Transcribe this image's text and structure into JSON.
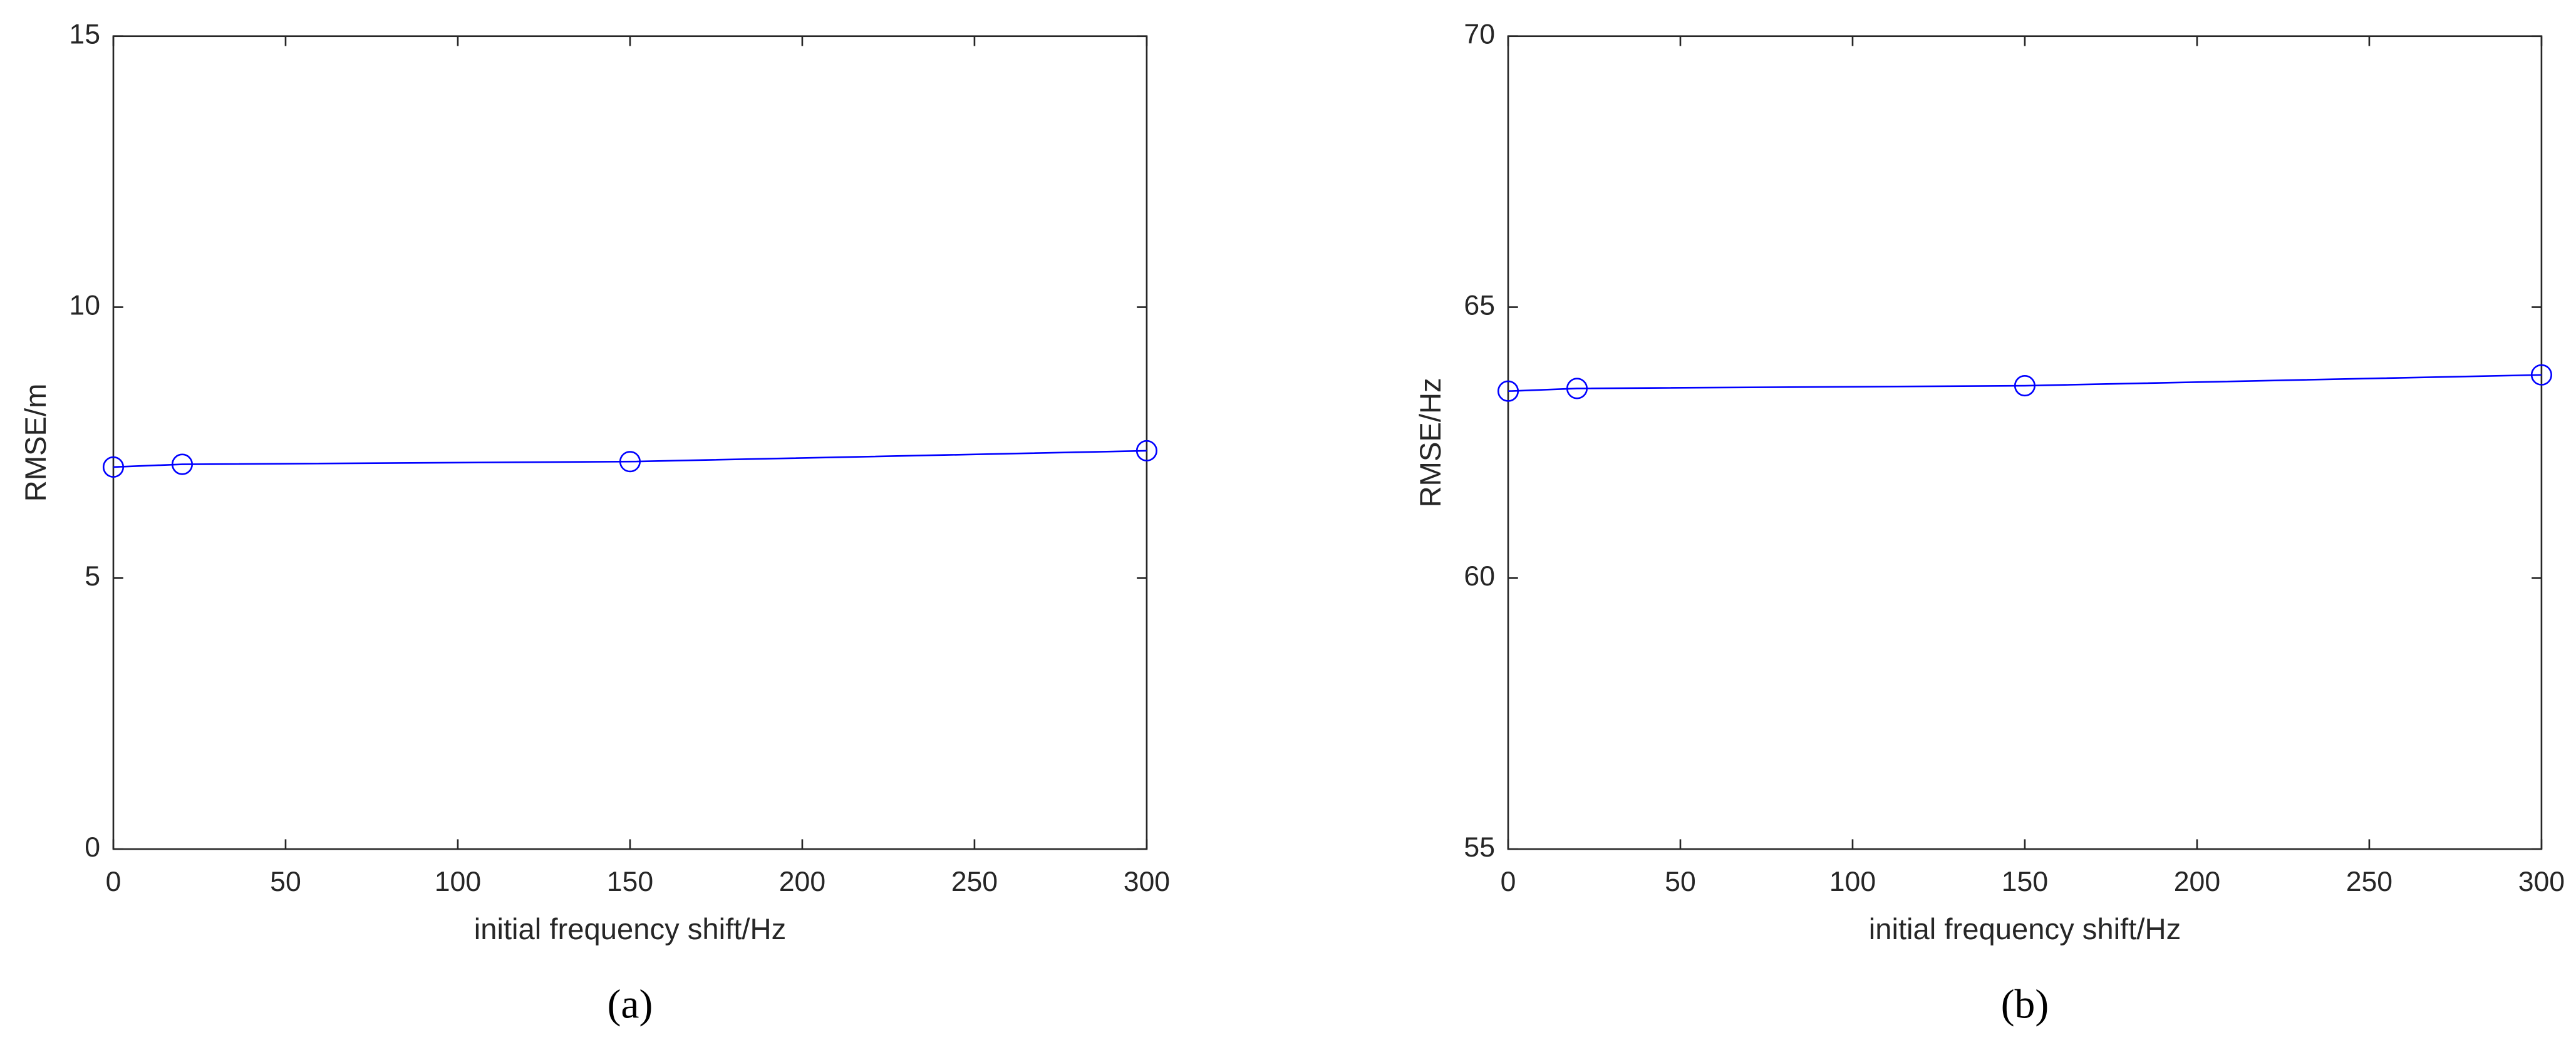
{
  "chart_data": [
    {
      "type": "line",
      "caption": "(a)",
      "x_label": "initial frequency shift/Hz",
      "y_label": "RMSE/m",
      "x": [
        0,
        20,
        150,
        300
      ],
      "values": [
        7.05,
        7.1,
        7.15,
        7.35
      ],
      "color": "#0000ff",
      "xlim": [
        0,
        300
      ],
      "xticks": [
        0,
        50,
        100,
        150,
        200,
        250,
        300
      ],
      "ylim": [
        0,
        15
      ],
      "yticks": [
        0,
        5,
        10,
        15
      ],
      "marker": "circle"
    },
    {
      "type": "line",
      "caption": "(b)",
      "x_label": "initial frequency shift/Hz",
      "y_label": "RMSE/Hz",
      "x": [
        0,
        20,
        150,
        300
      ],
      "values": [
        63.45,
        63.5,
        63.55,
        63.75
      ],
      "color": "#0000ff",
      "xlim": [
        0,
        300
      ],
      "xticks": [
        0,
        50,
        100,
        150,
        200,
        250,
        300
      ],
      "ylim": [
        55,
        70
      ],
      "yticks": [
        55,
        60,
        65,
        70
      ],
      "marker": "circle"
    }
  ]
}
